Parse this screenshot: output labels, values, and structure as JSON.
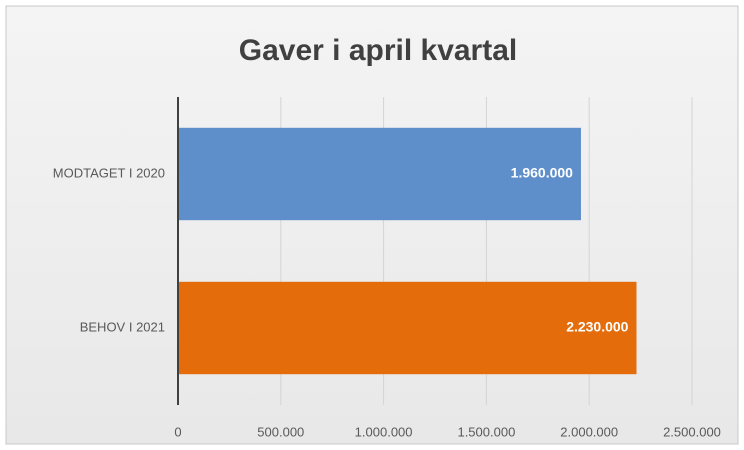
{
  "chart_data": {
    "type": "bar",
    "orientation": "horizontal",
    "title": "Gaver i april kvartal",
    "categories": [
      "MODTAGET I 2020",
      "BEHOV I 2021"
    ],
    "values": [
      1960000,
      2230000
    ],
    "value_labels": [
      "1.960.000",
      "2.230.000"
    ],
    "colors": [
      "#5f8fcb",
      "#e46c0a"
    ],
    "xlim": [
      0,
      2500000
    ],
    "xticks": [
      0,
      {
        "value": 500000,
        "label": "500.000"
      },
      {
        "value": 1000000,
        "label": "1.000.000"
      },
      {
        "value": 1500000,
        "label": "1.500.000"
      },
      {
        "value": 2000000,
        "label": "2.000.000"
      },
      {
        "value": 2500000,
        "label": "2.500.000"
      }
    ],
    "grid": true
  }
}
